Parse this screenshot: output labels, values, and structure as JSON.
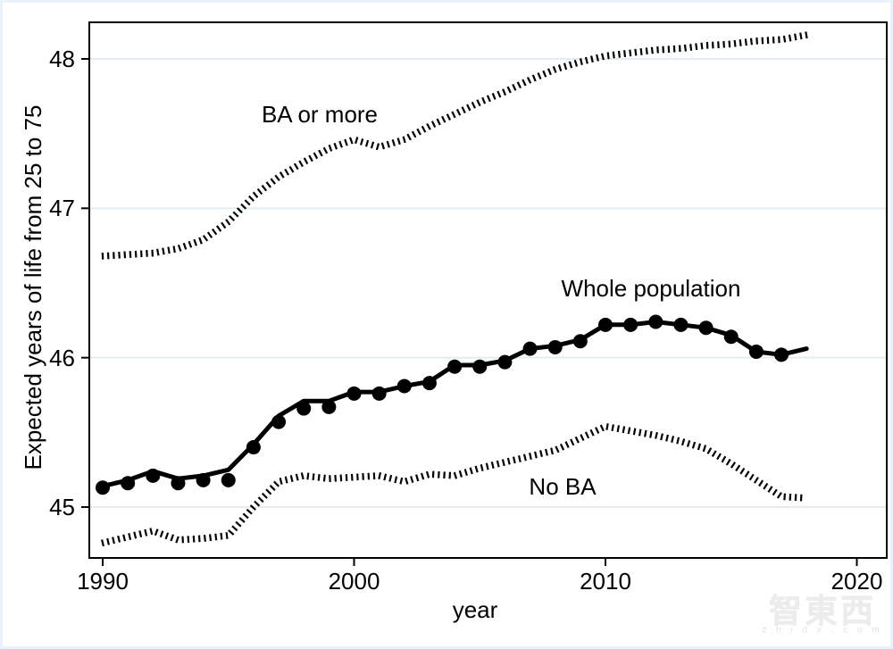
{
  "watermark": {
    "logo": "智東西",
    "caption": "z h i d x . c o m"
  },
  "chart_data": {
    "type": "line",
    "title": "",
    "xlabel": "year",
    "ylabel": "Expected years of life from 25 to 75",
    "x_ticks": [
      1990,
      2000,
      2010,
      2020
    ],
    "y_ticks": [
      45,
      46,
      47,
      48
    ],
    "xlim": [
      1989.5,
      2021.2
    ],
    "ylim": [
      44.56,
      48.25
    ],
    "grid": "horizontal",
    "grid_color": "#e3ecef",
    "line_color": "#000000",
    "years": [
      1990,
      1991,
      1992,
      1993,
      1994,
      1995,
      1996,
      1997,
      1998,
      1999,
      2000,
      2001,
      2002,
      2003,
      2004,
      2005,
      2006,
      2007,
      2008,
      2009,
      2010,
      2011,
      2012,
      2013,
      2014,
      2015,
      2016,
      2017,
      2018
    ],
    "series": [
      {
        "name": "BA or more",
        "style": "dotted",
        "values": [
          46.68,
          46.69,
          46.7,
          46.73,
          46.79,
          46.91,
          47.08,
          47.21,
          47.31,
          47.4,
          47.46,
          47.41,
          47.46,
          47.55,
          47.63,
          47.71,
          47.78,
          47.86,
          47.93,
          47.98,
          48.02,
          48.04,
          48.06,
          48.07,
          48.09,
          48.1,
          48.12,
          48.13,
          48.16
        ]
      },
      {
        "name": "Whole population",
        "style": "solid",
        "values": [
          45.14,
          45.18,
          45.24,
          45.19,
          45.21,
          45.25,
          45.42,
          45.61,
          45.71,
          45.71,
          45.77,
          45.77,
          45.81,
          45.84,
          45.95,
          45.95,
          45.98,
          46.06,
          46.08,
          46.12,
          46.22,
          46.22,
          46.24,
          46.22,
          46.2,
          46.15,
          46.04,
          46.02,
          46.06
        ],
        "markers": [
          45.13,
          45.16,
          45.21,
          45.16,
          45.18,
          45.18,
          45.4,
          45.57,
          45.66,
          45.67,
          45.76,
          45.76,
          45.81,
          45.83,
          45.94,
          45.94,
          45.97,
          46.06,
          46.07,
          46.11,
          46.22,
          46.22,
          46.24,
          46.22,
          46.2,
          46.14,
          46.04,
          46.02
        ]
      },
      {
        "name": "No BA",
        "style": "dotted",
        "values": [
          44.76,
          44.8,
          44.84,
          44.78,
          44.79,
          44.81,
          45.0,
          45.17,
          45.21,
          45.19,
          45.2,
          45.21,
          45.17,
          45.22,
          45.21,
          45.26,
          45.3,
          45.34,
          45.38,
          45.46,
          45.54,
          45.51,
          45.48,
          45.44,
          45.39,
          45.29,
          45.18,
          45.07,
          45.06
        ]
      }
    ]
  }
}
